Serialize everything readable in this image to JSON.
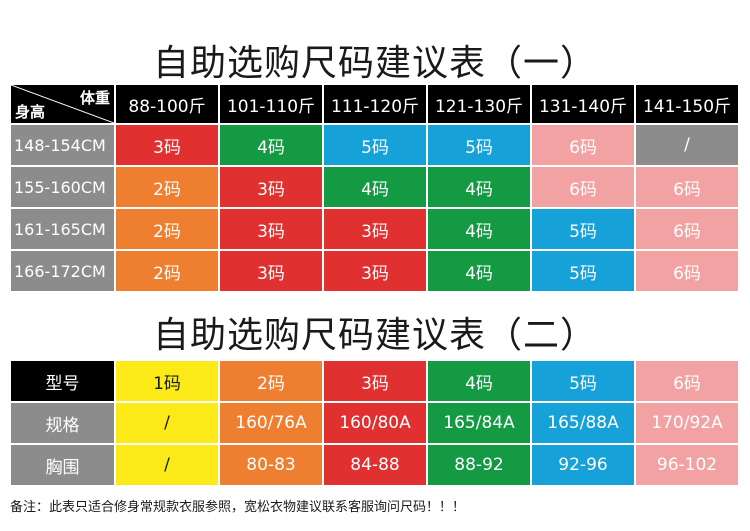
{
  "titles": {
    "table1": "自助选购尺码建议表（一）",
    "table2": "自助选购尺码建议表（二）"
  },
  "table1": {
    "corner_weight": "体重",
    "corner_height": "身高",
    "weight_headers": [
      "88-100斤",
      "101-110斤",
      "111-120斤",
      "121-130斤",
      "131-140斤",
      "141-150斤"
    ],
    "rows": [
      {
        "height": "148-154CM",
        "cells": [
          {
            "v": "3码",
            "c": "red"
          },
          {
            "v": "4码",
            "c": "green"
          },
          {
            "v": "5码",
            "c": "blue"
          },
          {
            "v": "5码",
            "c": "blue"
          },
          {
            "v": "6码",
            "c": "pink"
          },
          {
            "v": "/",
            "c": "gray"
          }
        ]
      },
      {
        "height": "155-160CM",
        "cells": [
          {
            "v": "2码",
            "c": "orange"
          },
          {
            "v": "3码",
            "c": "red"
          },
          {
            "v": "4码",
            "c": "green"
          },
          {
            "v": "4码",
            "c": "green"
          },
          {
            "v": "6码",
            "c": "pink"
          },
          {
            "v": "6码",
            "c": "pink"
          }
        ]
      },
      {
        "height": "161-165CM",
        "cells": [
          {
            "v": "2码",
            "c": "orange"
          },
          {
            "v": "3码",
            "c": "red"
          },
          {
            "v": "3码",
            "c": "red"
          },
          {
            "v": "4码",
            "c": "green"
          },
          {
            "v": "5码",
            "c": "blue"
          },
          {
            "v": "6码",
            "c": "pink"
          }
        ]
      },
      {
        "height": "166-172CM",
        "cells": [
          {
            "v": "2码",
            "c": "orange"
          },
          {
            "v": "3码",
            "c": "red"
          },
          {
            "v": "3码",
            "c": "red"
          },
          {
            "v": "4码",
            "c": "green"
          },
          {
            "v": "5码",
            "c": "blue"
          },
          {
            "v": "6码",
            "c": "pink"
          }
        ]
      }
    ]
  },
  "table2": {
    "rows": [
      {
        "label": "型号",
        "labelStyle": "black",
        "cells": [
          {
            "v": "1码",
            "c": "yellow"
          },
          {
            "v": "2码",
            "c": "orange"
          },
          {
            "v": "3码",
            "c": "red"
          },
          {
            "v": "4码",
            "c": "green"
          },
          {
            "v": "5码",
            "c": "blue"
          },
          {
            "v": "6码",
            "c": "pink"
          }
        ]
      },
      {
        "label": "规格",
        "labelStyle": "gray",
        "cells": [
          {
            "v": "/",
            "c": "yellow"
          },
          {
            "v": "160/76A",
            "c": "orange"
          },
          {
            "v": "160/80A",
            "c": "red"
          },
          {
            "v": "165/84A",
            "c": "green"
          },
          {
            "v": "165/88A",
            "c": "blue"
          },
          {
            "v": "170/92A",
            "c": "pink"
          }
        ]
      },
      {
        "label": "胸围",
        "labelStyle": "gray",
        "cells": [
          {
            "v": "/",
            "c": "yellow"
          },
          {
            "v": "80-83",
            "c": "orange"
          },
          {
            "v": "84-88",
            "c": "red"
          },
          {
            "v": "88-92",
            "c": "green"
          },
          {
            "v": "92-96",
            "c": "blue"
          },
          {
            "v": "96-102",
            "c": "pink"
          }
        ]
      }
    ]
  },
  "colors": {
    "red": "#e03030",
    "green": "#139a43",
    "blue": "#17a1d9",
    "pink": "#f2a2a2",
    "orange": "#ef7f30",
    "gray": "#8c8c8c",
    "yellow": "#fbea18",
    "black": "#000000"
  },
  "note": "备注：此表只适合修身常规款衣服参照，宽松衣物建议联系客服询问尺码！！！"
}
